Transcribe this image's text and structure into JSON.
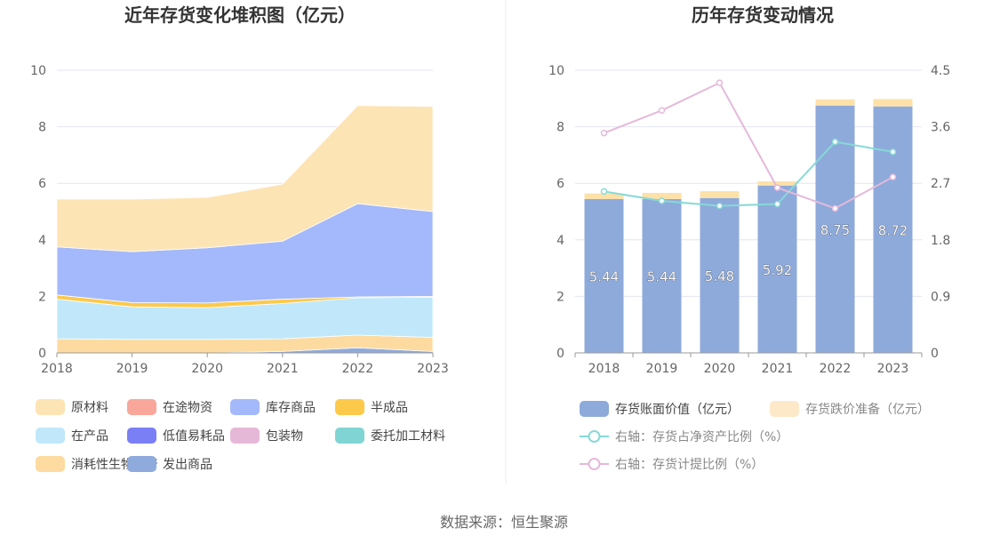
{
  "left_chart": {
    "title": "近年存货变化堆积图（亿元）",
    "ylim": [
      0,
      10
    ],
    "y_ticks": [
      "0",
      "2",
      "4",
      "6",
      "8",
      "10"
    ],
    "legend": [
      "原材料",
      "在途物资",
      "库存商品",
      "半成品",
      "在产品",
      "低值易耗品",
      "包装物",
      "委托加工材料",
      "消耗性生物资产",
      "发出商品"
    ]
  },
  "right_chart": {
    "title": "历年存货变动情况",
    "ylim": [
      0,
      10
    ],
    "y_ticks": [
      "0",
      "2",
      "4",
      "6",
      "8",
      "10"
    ],
    "y2lim": [
      0,
      4.5
    ],
    "y2_ticks": [
      "0",
      "0.9",
      "1.8",
      "2.7",
      "3.6",
      "4.5"
    ],
    "legend": [
      "存货账面价值（亿元）",
      "存货跌价准备（亿元）",
      "右轴：存货占净资产比例（%）",
      "右轴：存货计提比例（%）"
    ]
  },
  "footer": "数据来源：恒生聚源",
  "chart_data": [
    {
      "type": "area",
      "stacked": true,
      "x": [
        "2018",
        "2019",
        "2020",
        "2021",
        "2022",
        "2023"
      ],
      "ylim": [
        0,
        10
      ],
      "series": [
        {
          "name": "发出商品",
          "color": "#8faadc",
          "values": [
            0.0,
            0.0,
            0.0,
            0.05,
            0.18,
            0.05
          ]
        },
        {
          "name": "消耗性生物资产",
          "color": "#fddba0",
          "values": [
            0.5,
            0.48,
            0.48,
            0.45,
            0.45,
            0.5
          ]
        },
        {
          "name": "委托加工材料",
          "color": "#80d5d4",
          "values": [
            0.0,
            0.0,
            0.0,
            0.0,
            0.0,
            0.0
          ]
        },
        {
          "name": "包装物",
          "color": "#e6b8d8",
          "values": [
            0.0,
            0.0,
            0.0,
            0.0,
            0.0,
            0.0
          ]
        },
        {
          "name": "低值易耗品",
          "color": "#7b7ff5",
          "values": [
            0.0,
            0.0,
            0.0,
            0.0,
            0.0,
            0.0
          ]
        },
        {
          "name": "在产品",
          "color": "#c0e8fa",
          "values": [
            1.4,
            1.15,
            1.12,
            1.25,
            1.32,
            1.42
          ]
        },
        {
          "name": "半成品",
          "color": "#fdc94a",
          "values": [
            0.15,
            0.15,
            0.17,
            0.15,
            0.03,
            0.03
          ]
        },
        {
          "name": "库存商品",
          "color": "#a4b9fb",
          "values": [
            1.7,
            1.8,
            1.95,
            2.05,
            3.3,
            3.0
          ]
        },
        {
          "name": "在途物资",
          "color": "#f8a79a",
          "values": [
            0.0,
            0.0,
            0.0,
            0.0,
            0.0,
            0.0
          ]
        },
        {
          "name": "原材料",
          "color": "#fde4b5",
          "values": [
            1.69,
            1.86,
            1.78,
            2.02,
            3.47,
            3.72
          ]
        }
      ]
    },
    {
      "type": "bar",
      "stacked": true,
      "categories": [
        "2018",
        "2019",
        "2020",
        "2021",
        "2022",
        "2023"
      ],
      "ylim": [
        0,
        10
      ],
      "y2lim": [
        0,
        4.5
      ],
      "series": [
        {
          "name": "存货账面价值（亿元）",
          "color": "#8eaadb",
          "values": [
            5.44,
            5.44,
            5.48,
            5.92,
            8.75,
            8.72
          ],
          "labels": [
            "5.44",
            "5.44",
            "5.48",
            "5.92",
            "8.75",
            "8.72"
          ]
        },
        {
          "name": "存货跌价准备（亿元）",
          "color": "#fde1a8",
          "values": [
            0.2,
            0.22,
            0.24,
            0.15,
            0.22,
            0.26
          ]
        }
      ],
      "line_series": [
        {
          "name": "右轴：存货占净资产比例（%）",
          "color": "#86d9d6",
          "axis": "right",
          "values": [
            2.57,
            2.42,
            2.34,
            2.37,
            3.36,
            3.2
          ]
        },
        {
          "name": "右轴：存货计提比例（%）",
          "color": "#e5b9da",
          "axis": "right",
          "values": [
            3.5,
            3.86,
            4.3,
            2.63,
            2.3,
            2.8
          ]
        }
      ]
    }
  ]
}
